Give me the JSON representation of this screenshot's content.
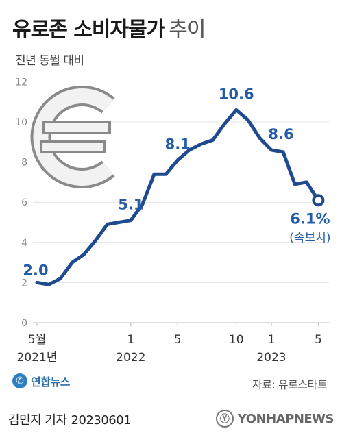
{
  "title": {
    "main": "유로존 소비자물가",
    "suffix": "추이"
  },
  "subtitle": "전년 동월 대비",
  "colors": {
    "line": "#1f4a8f",
    "label": "#245ca8",
    "grid": "#e4e4e4",
    "axis": "#bbbbbb",
    "tick": "#888888"
  },
  "icon": "euro-sign-icon",
  "chart_data": {
    "type": "line",
    "title": "유로존 소비자물가 추이",
    "ylabel": "전년 동월 대비",
    "ylim": [
      0,
      12
    ],
    "yticks": [
      "0",
      "2",
      "4",
      "6",
      "8",
      "10",
      "12"
    ],
    "x": [
      "2021-05",
      "2021-06",
      "2021-07",
      "2021-08",
      "2021-09",
      "2021-10",
      "2021-11",
      "2021-12",
      "2022-01",
      "2022-02",
      "2022-03",
      "2022-04",
      "2022-05",
      "2022-06",
      "2022-07",
      "2022-08",
      "2022-09",
      "2022-10",
      "2022-11",
      "2022-12",
      "2023-01",
      "2023-02",
      "2023-03",
      "2023-04",
      "2023-05"
    ],
    "values": [
      2.0,
      1.9,
      2.2,
      3.0,
      3.4,
      4.1,
      4.9,
      5.0,
      5.1,
      5.9,
      7.4,
      7.4,
      8.1,
      8.6,
      8.9,
      9.1,
      9.9,
      10.6,
      10.1,
      9.2,
      8.6,
      8.5,
      6.9,
      7.0,
      6.1
    ],
    "xticks": [
      {
        "index": 0,
        "label": "5월",
        "year": "2021년"
      },
      {
        "index": 8,
        "label": "1",
        "year": "2022"
      },
      {
        "index": 12,
        "label": "5",
        "year": ""
      },
      {
        "index": 17,
        "label": "10",
        "year": ""
      },
      {
        "index": 20,
        "label": "1",
        "year": "2023"
      },
      {
        "index": 24,
        "label": "5",
        "year": ""
      }
    ],
    "annotations": [
      {
        "index": 0,
        "text": "2.0"
      },
      {
        "index": 8,
        "text": "5.1"
      },
      {
        "index": 12,
        "text": "8.1"
      },
      {
        "index": 17,
        "text": "10.6"
      },
      {
        "index": 20,
        "text": "8.6"
      },
      {
        "index": 24,
        "text": "6.1%",
        "note": "(속보치)"
      }
    ],
    "grid": true
  },
  "logo_text": "연합뉴스",
  "source": "자료: 유로스타트",
  "byline": {
    "author": "김민지 기자",
    "date": "20230601"
  },
  "watermark": "YONHAPNEWS"
}
